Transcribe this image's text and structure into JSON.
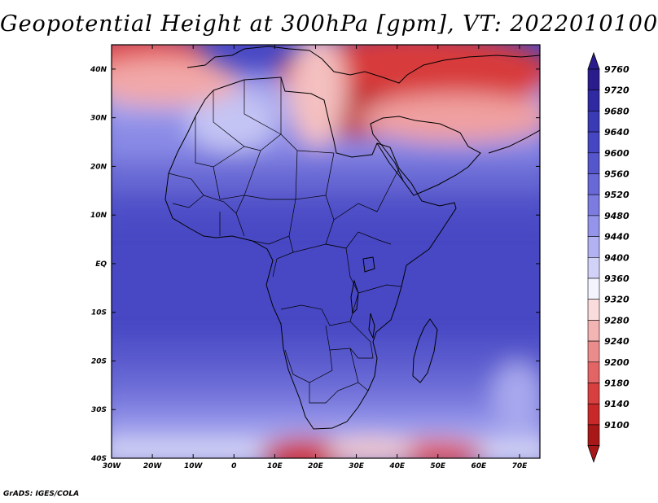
{
  "title": "Geopotential Height at 300hPa [gpm], VT: 2022010100",
  "credit": "GrADS: IGES/COLA",
  "map": {
    "lat_labels": [
      "40N",
      "30N",
      "20N",
      "10N",
      "EQ",
      "10S",
      "20S",
      "30S",
      "40S"
    ],
    "lat_values": [
      40,
      30,
      20,
      10,
      0,
      -10,
      -20,
      -30,
      -40
    ],
    "lon_labels": [
      "30W",
      "20W",
      "10W",
      "0",
      "10E",
      "20E",
      "30E",
      "40E",
      "50E",
      "60E",
      "70E"
    ],
    "lon_values": [
      -30,
      -20,
      -10,
      0,
      10,
      20,
      30,
      40,
      50,
      60,
      70
    ],
    "lon_range": [
      -30,
      75
    ],
    "lat_range": [
      -40,
      45
    ]
  },
  "colorbar": {
    "labels": [
      "9760",
      "9720",
      "9680",
      "9640",
      "9600",
      "9560",
      "9520",
      "9480",
      "9440",
      "9400",
      "9360",
      "9320",
      "9280",
      "9240",
      "9200",
      "9180",
      "9140",
      "9100"
    ],
    "colors": [
      "#2a1c8c",
      "#2f2aa2",
      "#3a3ab4",
      "#4646c2",
      "#5656cc",
      "#6868d6",
      "#7c7ce0",
      "#9494ea",
      "#b2b2f2",
      "#d2d2f8",
      "#f4f4ff",
      "#fadcdc",
      "#f3b4b4",
      "#eb8c8c",
      "#e26464",
      "#d84040",
      "#c82828",
      "#a81818"
    ],
    "top_color": "#2a1c8c",
    "bottom_color": "#a81818"
  }
}
